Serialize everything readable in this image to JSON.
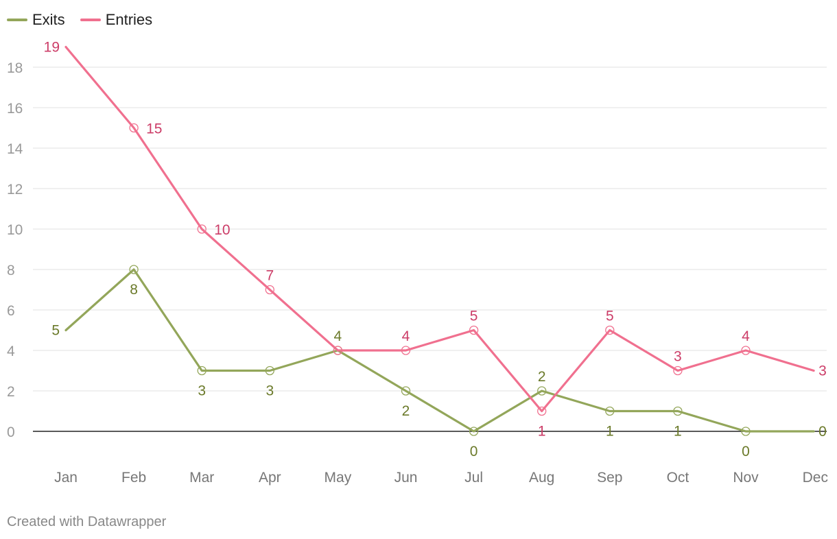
{
  "chart_data": {
    "type": "line",
    "categories": [
      "Jan",
      "Feb",
      "Mar",
      "Apr",
      "May",
      "Jun",
      "Jul",
      "Aug",
      "Sep",
      "Oct",
      "Nov",
      "Dec"
    ],
    "series": [
      {
        "name": "Exits",
        "color": "#93a65a",
        "label_color": "#6b7a2a",
        "values": [
          5,
          8,
          3,
          3,
          4,
          2,
          0,
          2,
          1,
          1,
          0,
          0
        ]
      },
      {
        "name": "Entries",
        "color": "#f0708f",
        "label_color": "#cc3d68",
        "values": [
          19,
          15,
          10,
          7,
          4,
          4,
          5,
          1,
          5,
          3,
          4,
          3
        ]
      }
    ],
    "yticks": [
      0,
      2,
      4,
      6,
      8,
      10,
      12,
      14,
      16,
      18
    ],
    "ylim": [
      0,
      19
    ],
    "grid": true,
    "legend_position": "top-left"
  },
  "footer": {
    "credit": "Created with Datawrapper"
  }
}
